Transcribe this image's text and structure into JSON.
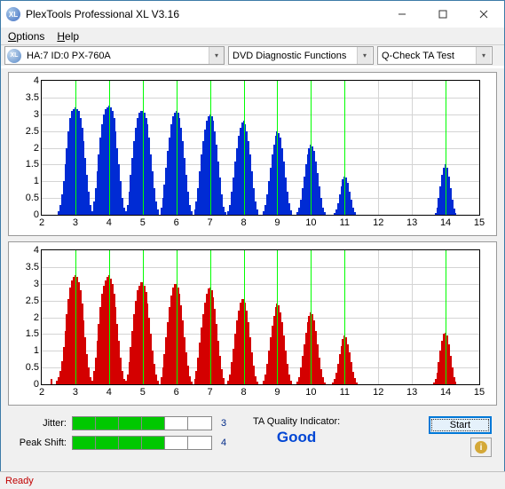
{
  "window": {
    "title": "PlexTools Professional XL V3.16",
    "icon_label": "XL"
  },
  "menu": {
    "options": "Options",
    "help": "Help"
  },
  "toolbar": {
    "drive_icon": "XL",
    "drive_text": "HA:7 ID:0  PX-760A",
    "func_text": "DVD Diagnostic Functions",
    "test_text": "Q-Check TA Test"
  },
  "charts": {
    "ylim": [
      0,
      4
    ],
    "yticks": [
      0,
      0.5,
      1,
      1.5,
      2,
      2.5,
      3,
      3.5,
      4
    ],
    "xlim": [
      2,
      15
    ],
    "xticks": [
      2,
      3,
      4,
      5,
      6,
      7,
      8,
      9,
      10,
      11,
      12,
      13,
      14,
      15
    ],
    "vlines": [
      3,
      4,
      5,
      6,
      7,
      8,
      9,
      10,
      11,
      14
    ],
    "top_color": "#002bd4",
    "bot_color": "#d40000",
    "grid_color": "#d4d4d4",
    "bg_color": "#ffffff",
    "top_data": [
      [
        2.5,
        0.1
      ],
      [
        2.55,
        0.3
      ],
      [
        2.6,
        0.6
      ],
      [
        2.65,
        1.0
      ],
      [
        2.7,
        1.5
      ],
      [
        2.75,
        2.0
      ],
      [
        2.8,
        2.5
      ],
      [
        2.85,
        2.9
      ],
      [
        2.9,
        3.1
      ],
      [
        2.95,
        3.15
      ],
      [
        3.0,
        3.2
      ],
      [
        3.05,
        3.15
      ],
      [
        3.1,
        3.1
      ],
      [
        3.15,
        2.9
      ],
      [
        3.2,
        2.6
      ],
      [
        3.25,
        2.2
      ],
      [
        3.3,
        1.7
      ],
      [
        3.35,
        1.2
      ],
      [
        3.4,
        0.7
      ],
      [
        3.45,
        0.3
      ],
      [
        3.5,
        0.1
      ],
      [
        3.55,
        0.4
      ],
      [
        3.6,
        0.8
      ],
      [
        3.65,
        1.3
      ],
      [
        3.7,
        1.8
      ],
      [
        3.75,
        2.3
      ],
      [
        3.8,
        2.7
      ],
      [
        3.85,
        3.0
      ],
      [
        3.9,
        3.15
      ],
      [
        3.95,
        3.2
      ],
      [
        4.0,
        3.25
      ],
      [
        4.05,
        3.2
      ],
      [
        4.1,
        3.1
      ],
      [
        4.15,
        2.9
      ],
      [
        4.2,
        2.5
      ],
      [
        4.25,
        2.0
      ],
      [
        4.3,
        1.5
      ],
      [
        4.35,
        1.0
      ],
      [
        4.4,
        0.5
      ],
      [
        4.45,
        0.2
      ],
      [
        4.5,
        0.1
      ],
      [
        4.55,
        0.3
      ],
      [
        4.6,
        0.7
      ],
      [
        4.65,
        1.2
      ],
      [
        4.7,
        1.7
      ],
      [
        4.75,
        2.2
      ],
      [
        4.8,
        2.6
      ],
      [
        4.85,
        2.9
      ],
      [
        4.9,
        3.05
      ],
      [
        4.95,
        3.1
      ],
      [
        5.0,
        3.1
      ],
      [
        5.05,
        3.05
      ],
      [
        5.1,
        2.9
      ],
      [
        5.15,
        2.7
      ],
      [
        5.2,
        2.3
      ],
      [
        5.25,
        1.8
      ],
      [
        5.3,
        1.3
      ],
      [
        5.35,
        0.8
      ],
      [
        5.4,
        0.4
      ],
      [
        5.45,
        0.15
      ],
      [
        5.55,
        0.2
      ],
      [
        5.6,
        0.5
      ],
      [
        5.65,
        0.9
      ],
      [
        5.7,
        1.4
      ],
      [
        5.75,
        1.9
      ],
      [
        5.8,
        2.3
      ],
      [
        5.85,
        2.7
      ],
      [
        5.9,
        2.95
      ],
      [
        5.95,
        3.05
      ],
      [
        6.0,
        3.1
      ],
      [
        6.05,
        3.05
      ],
      [
        6.1,
        2.9
      ],
      [
        6.15,
        2.6
      ],
      [
        6.2,
        2.2
      ],
      [
        6.25,
        1.7
      ],
      [
        6.3,
        1.2
      ],
      [
        6.35,
        0.7
      ],
      [
        6.4,
        0.3
      ],
      [
        6.45,
        0.1
      ],
      [
        6.55,
        0.15
      ],
      [
        6.6,
        0.4
      ],
      [
        6.65,
        0.8
      ],
      [
        6.7,
        1.3
      ],
      [
        6.75,
        1.8
      ],
      [
        6.8,
        2.2
      ],
      [
        6.85,
        2.55
      ],
      [
        6.9,
        2.8
      ],
      [
        6.95,
        2.95
      ],
      [
        7.0,
        3.0
      ],
      [
        7.05,
        2.95
      ],
      [
        7.1,
        2.8
      ],
      [
        7.15,
        2.5
      ],
      [
        7.2,
        2.1
      ],
      [
        7.25,
        1.6
      ],
      [
        7.3,
        1.1
      ],
      [
        7.35,
        0.6
      ],
      [
        7.4,
        0.25
      ],
      [
        7.45,
        0.08
      ],
      [
        7.55,
        0.1
      ],
      [
        7.6,
        0.3
      ],
      [
        7.65,
        0.7
      ],
      [
        7.7,
        1.1
      ],
      [
        7.75,
        1.6
      ],
      [
        7.8,
        2.0
      ],
      [
        7.85,
        2.35
      ],
      [
        7.9,
        2.6
      ],
      [
        7.95,
        2.75
      ],
      [
        8.0,
        2.8
      ],
      [
        8.05,
        2.7
      ],
      [
        8.1,
        2.5
      ],
      [
        8.15,
        2.2
      ],
      [
        8.2,
        1.8
      ],
      [
        8.25,
        1.3
      ],
      [
        8.3,
        0.8
      ],
      [
        8.35,
        0.4
      ],
      [
        8.4,
        0.15
      ],
      [
        8.6,
        0.1
      ],
      [
        8.65,
        0.3
      ],
      [
        8.7,
        0.6
      ],
      [
        8.75,
        1.0
      ],
      [
        8.8,
        1.4
      ],
      [
        8.85,
        1.8
      ],
      [
        8.9,
        2.1
      ],
      [
        8.95,
        2.35
      ],
      [
        9.0,
        2.5
      ],
      [
        9.05,
        2.45
      ],
      [
        9.1,
        2.3
      ],
      [
        9.15,
        2.0
      ],
      [
        9.2,
        1.6
      ],
      [
        9.25,
        1.1
      ],
      [
        9.3,
        0.7
      ],
      [
        9.35,
        0.35
      ],
      [
        9.4,
        0.12
      ],
      [
        9.6,
        0.08
      ],
      [
        9.65,
        0.2
      ],
      [
        9.7,
        0.45
      ],
      [
        9.75,
        0.8
      ],
      [
        9.8,
        1.15
      ],
      [
        9.85,
        1.5
      ],
      [
        9.9,
        1.8
      ],
      [
        9.95,
        2.0
      ],
      [
        10.0,
        2.1
      ],
      [
        10.05,
        2.05
      ],
      [
        10.1,
        1.9
      ],
      [
        10.15,
        1.6
      ],
      [
        10.2,
        1.25
      ],
      [
        10.25,
        0.85
      ],
      [
        10.3,
        0.5
      ],
      [
        10.35,
        0.22
      ],
      [
        10.4,
        0.08
      ],
      [
        10.7,
        0.05
      ],
      [
        10.75,
        0.15
      ],
      [
        10.8,
        0.35
      ],
      [
        10.85,
        0.6
      ],
      [
        10.9,
        0.85
      ],
      [
        10.95,
        1.05
      ],
      [
        11.0,
        1.15
      ],
      [
        11.05,
        1.1
      ],
      [
        11.1,
        0.95
      ],
      [
        11.15,
        0.7
      ],
      [
        11.2,
        0.45
      ],
      [
        11.25,
        0.22
      ],
      [
        11.3,
        0.08
      ],
      [
        13.7,
        0.05
      ],
      [
        13.75,
        0.2
      ],
      [
        13.8,
        0.5
      ],
      [
        13.85,
        0.85
      ],
      [
        13.9,
        1.2
      ],
      [
        13.95,
        1.4
      ],
      [
        14.0,
        1.5
      ],
      [
        14.05,
        1.4
      ],
      [
        14.1,
        1.15
      ],
      [
        14.15,
        0.8
      ],
      [
        14.2,
        0.45
      ],
      [
        14.25,
        0.18
      ],
      [
        14.3,
        0.05
      ]
    ],
    "bot_data": [
      [
        2.3,
        0.15
      ],
      [
        2.45,
        0.1
      ],
      [
        2.5,
        0.2
      ],
      [
        2.55,
        0.4
      ],
      [
        2.6,
        0.7
      ],
      [
        2.65,
        1.1
      ],
      [
        2.7,
        1.6
      ],
      [
        2.75,
        2.1
      ],
      [
        2.8,
        2.55
      ],
      [
        2.85,
        2.9
      ],
      [
        2.9,
        3.1
      ],
      [
        2.95,
        3.2
      ],
      [
        3.0,
        3.25
      ],
      [
        3.05,
        3.2
      ],
      [
        3.1,
        3.05
      ],
      [
        3.15,
        2.8
      ],
      [
        3.2,
        2.4
      ],
      [
        3.25,
        1.9
      ],
      [
        3.3,
        1.4
      ],
      [
        3.35,
        0.9
      ],
      [
        3.4,
        0.5
      ],
      [
        3.45,
        0.2
      ],
      [
        3.5,
        0.1
      ],
      [
        3.55,
        0.4
      ],
      [
        3.6,
        0.8
      ],
      [
        3.65,
        1.3
      ],
      [
        3.7,
        1.8
      ],
      [
        3.75,
        2.3
      ],
      [
        3.8,
        2.7
      ],
      [
        3.85,
        2.95
      ],
      [
        3.9,
        3.1
      ],
      [
        3.95,
        3.2
      ],
      [
        4.0,
        3.25
      ],
      [
        4.05,
        3.15
      ],
      [
        4.1,
        3.0
      ],
      [
        4.15,
        2.7
      ],
      [
        4.2,
        2.3
      ],
      [
        4.25,
        1.8
      ],
      [
        4.3,
        1.3
      ],
      [
        4.35,
        0.8
      ],
      [
        4.4,
        0.4
      ],
      [
        4.45,
        0.15
      ],
      [
        4.5,
        0.1
      ],
      [
        4.55,
        0.3
      ],
      [
        4.6,
        0.65
      ],
      [
        4.65,
        1.1
      ],
      [
        4.7,
        1.6
      ],
      [
        4.75,
        2.1
      ],
      [
        4.8,
        2.5
      ],
      [
        4.85,
        2.8
      ],
      [
        4.9,
        2.95
      ],
      [
        4.95,
        3.05
      ],
      [
        5.0,
        3.05
      ],
      [
        5.05,
        2.95
      ],
      [
        5.1,
        2.75
      ],
      [
        5.15,
        2.4
      ],
      [
        5.2,
        2.0
      ],
      [
        5.25,
        1.5
      ],
      [
        5.3,
        1.0
      ],
      [
        5.35,
        0.6
      ],
      [
        5.4,
        0.3
      ],
      [
        5.45,
        0.1
      ],
      [
        5.55,
        0.2
      ],
      [
        5.6,
        0.5
      ],
      [
        5.65,
        0.9
      ],
      [
        5.7,
        1.4
      ],
      [
        5.75,
        1.85
      ],
      [
        5.8,
        2.3
      ],
      [
        5.85,
        2.65
      ],
      [
        5.9,
        2.9
      ],
      [
        5.95,
        3.0
      ],
      [
        6.0,
        3.0
      ],
      [
        6.05,
        2.9
      ],
      [
        6.1,
        2.7
      ],
      [
        6.15,
        2.35
      ],
      [
        6.2,
        1.9
      ],
      [
        6.25,
        1.4
      ],
      [
        6.3,
        0.95
      ],
      [
        6.35,
        0.55
      ],
      [
        6.4,
        0.25
      ],
      [
        6.45,
        0.08
      ],
      [
        6.55,
        0.15
      ],
      [
        6.6,
        0.4
      ],
      [
        6.65,
        0.8
      ],
      [
        6.7,
        1.25
      ],
      [
        6.75,
        1.7
      ],
      [
        6.8,
        2.1
      ],
      [
        6.85,
        2.45
      ],
      [
        6.9,
        2.7
      ],
      [
        6.95,
        2.85
      ],
      [
        7.0,
        2.9
      ],
      [
        7.05,
        2.8
      ],
      [
        7.1,
        2.6
      ],
      [
        7.15,
        2.25
      ],
      [
        7.2,
        1.8
      ],
      [
        7.25,
        1.3
      ],
      [
        7.3,
        0.85
      ],
      [
        7.35,
        0.45
      ],
      [
        7.4,
        0.18
      ],
      [
        7.55,
        0.1
      ],
      [
        7.6,
        0.3
      ],
      [
        7.65,
        0.65
      ],
      [
        7.7,
        1.05
      ],
      [
        7.75,
        1.5
      ],
      [
        7.8,
        1.9
      ],
      [
        7.85,
        2.2
      ],
      [
        7.9,
        2.45
      ],
      [
        7.95,
        2.55
      ],
      [
        8.0,
        2.55
      ],
      [
        8.05,
        2.45
      ],
      [
        8.1,
        2.2
      ],
      [
        8.15,
        1.85
      ],
      [
        8.2,
        1.4
      ],
      [
        8.25,
        0.95
      ],
      [
        8.3,
        0.55
      ],
      [
        8.35,
        0.25
      ],
      [
        8.4,
        0.08
      ],
      [
        8.6,
        0.1
      ],
      [
        8.65,
        0.3
      ],
      [
        8.7,
        0.6
      ],
      [
        8.75,
        1.0
      ],
      [
        8.8,
        1.4
      ],
      [
        8.85,
        1.75
      ],
      [
        8.9,
        2.05
      ],
      [
        8.95,
        2.3
      ],
      [
        9.0,
        2.4
      ],
      [
        9.05,
        2.35
      ],
      [
        9.1,
        2.15
      ],
      [
        9.15,
        1.85
      ],
      [
        9.2,
        1.45
      ],
      [
        9.25,
        1.0
      ],
      [
        9.3,
        0.6
      ],
      [
        9.35,
        0.3
      ],
      [
        9.4,
        0.1
      ],
      [
        9.6,
        0.08
      ],
      [
        9.65,
        0.22
      ],
      [
        9.7,
        0.5
      ],
      [
        9.75,
        0.85
      ],
      [
        9.8,
        1.2
      ],
      [
        9.85,
        1.55
      ],
      [
        9.9,
        1.85
      ],
      [
        9.95,
        2.05
      ],
      [
        10.0,
        2.15
      ],
      [
        10.05,
        2.1
      ],
      [
        10.1,
        1.9
      ],
      [
        10.15,
        1.6
      ],
      [
        10.2,
        1.2
      ],
      [
        10.25,
        0.8
      ],
      [
        10.3,
        0.45
      ],
      [
        10.35,
        0.2
      ],
      [
        10.4,
        0.06
      ],
      [
        10.65,
        0.05
      ],
      [
        10.7,
        0.15
      ],
      [
        10.75,
        0.35
      ],
      [
        10.8,
        0.6
      ],
      [
        10.85,
        0.9
      ],
      [
        10.9,
        1.15
      ],
      [
        10.95,
        1.35
      ],
      [
        11.0,
        1.45
      ],
      [
        11.05,
        1.4
      ],
      [
        11.1,
        1.2
      ],
      [
        11.15,
        0.95
      ],
      [
        11.2,
        0.65
      ],
      [
        11.25,
        0.38
      ],
      [
        11.3,
        0.18
      ],
      [
        11.35,
        0.06
      ],
      [
        13.65,
        0.05
      ],
      [
        13.7,
        0.15
      ],
      [
        13.75,
        0.35
      ],
      [
        13.8,
        0.65
      ],
      [
        13.85,
        1.0
      ],
      [
        13.9,
        1.3
      ],
      [
        13.95,
        1.5
      ],
      [
        14.0,
        1.55
      ],
      [
        14.05,
        1.45
      ],
      [
        14.1,
        1.2
      ],
      [
        14.15,
        0.85
      ],
      [
        14.2,
        0.5
      ],
      [
        14.25,
        0.22
      ],
      [
        14.3,
        0.08
      ]
    ]
  },
  "stats": {
    "jitter_label": "Jitter:",
    "jitter_segments": [
      true,
      true,
      true,
      true,
      false,
      false
    ],
    "jitter_value": "3",
    "peak_label": "Peak Shift:",
    "peak_segments": [
      true,
      true,
      true,
      true,
      false,
      false
    ],
    "peak_value": "4",
    "quality_label": "TA Quality Indicator:",
    "quality_value": "Good",
    "start_label": "Start",
    "value_color": "#002a88",
    "quality_color": "#0046d4",
    "seg_on_color": "#00c800"
  },
  "status": {
    "text": "Ready",
    "color": "#c00000"
  }
}
